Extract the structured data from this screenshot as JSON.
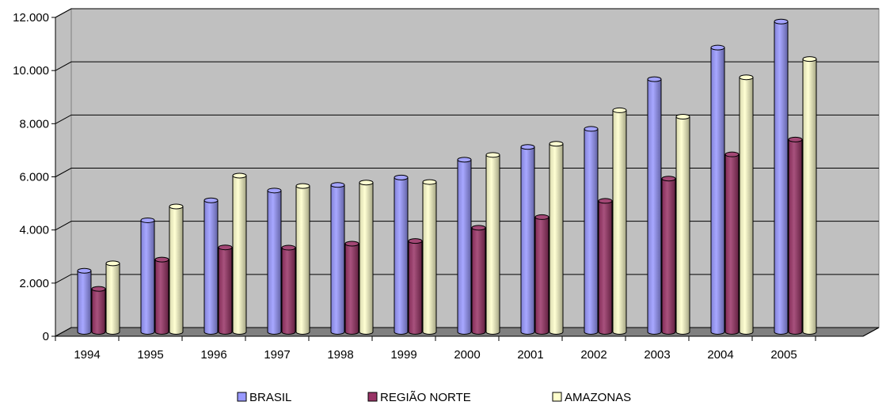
{
  "chart_data": {
    "type": "bar",
    "categories": [
      "1994",
      "1995",
      "1996",
      "1997",
      "1998",
      "1999",
      "2000",
      "2001",
      "2002",
      "2003",
      "2004",
      "2005"
    ],
    "series": [
      {
        "name": "BRASIL",
        "color": "#9999ff",
        "values": [
          2300,
          4200,
          4950,
          5320,
          5530,
          5810,
          6480,
          6960,
          7640,
          9510,
          10700,
          11680
        ]
      },
      {
        "name": "REGIÃO NORTE",
        "color": "#993366",
        "values": [
          1620,
          2720,
          3180,
          3170,
          3320,
          3420,
          3920,
          4320,
          4930,
          5770,
          6680,
          7240
        ]
      },
      {
        "name": "AMAZONAS",
        "color": "#ffffcc",
        "values": [
          2580,
          4720,
          5880,
          5490,
          5620,
          5640,
          6660,
          7080,
          8340,
          8100,
          9580,
          10270
        ]
      }
    ],
    "ylim": [
      0,
      12000
    ],
    "yticks": [
      {
        "value": 0,
        "label": "0"
      },
      {
        "value": 2000,
        "label": "2.000"
      },
      {
        "value": 4000,
        "label": "4.000"
      },
      {
        "value": 6000,
        "label": "6.000"
      },
      {
        "value": 8000,
        "label": "8.000"
      },
      {
        "value": 10000,
        "label": "10.000"
      },
      {
        "value": 12000,
        "label": "12.000"
      }
    ],
    "grid": true,
    "legend_position": "bottom",
    "colors": {
      "wall": "#c0c0c0",
      "floor": "#808080",
      "gridline": "#000000"
    }
  }
}
